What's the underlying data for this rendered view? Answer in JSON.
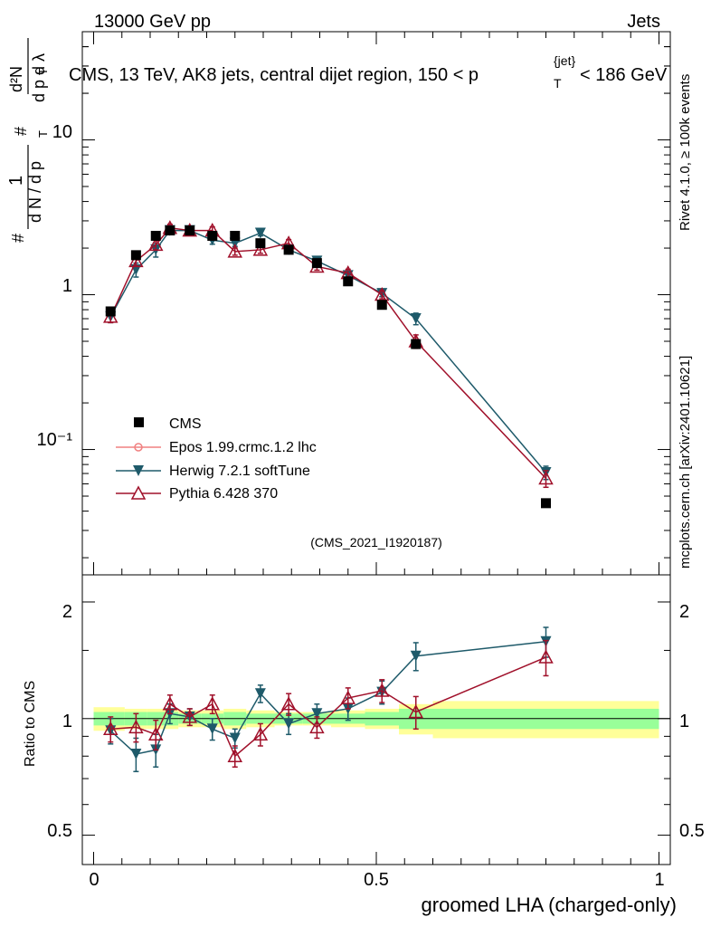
{
  "header": {
    "energy": "13000 GeV pp",
    "category": "Jets",
    "plot_title": "CMS, 13 TeV, AK8 jets, central dijet region, 150 < p",
    "plot_title_sup": "{jet}",
    "plot_title_sub": "T",
    "plot_title_end": "< 186 GeV",
    "analysis_id": "(CMS_2021_I1920187)"
  },
  "side": {
    "rivet": "Rivet 4.1.0, ≥ 100k events",
    "mcplots": "mcplots.cern.ch [arXiv:2401.10621]"
  },
  "axes": {
    "ylabel_main": "1/N dN/dp_T dλ",
    "ylabel_ratio": "Ratio to CMS",
    "xlabel": "groomed LHA (charged-only)",
    "x_ticks": [
      "0",
      "0.5",
      "1"
    ],
    "y_ticks_main": [
      "10⁻¹",
      "1",
      "10"
    ],
    "y_ticks_ratio": [
      "0.5",
      "1",
      "2"
    ]
  },
  "legend": [
    {
      "label": "CMS",
      "color": "#000000",
      "marker": "square"
    },
    {
      "label": "Epos 1.99.crmc.1.2 lhc",
      "color": "#f08080",
      "marker": "open-circle"
    },
    {
      "label": "Herwig 7.2.1 softTune",
      "color": "#1e5a6a",
      "marker": "down-triangle"
    },
    {
      "label": "Pythia 6.428 370",
      "color": "#a0102a",
      "marker": "open-triangle"
    }
  ],
  "chart_data": {
    "type": "line",
    "title": "CMS, 13 TeV, AK8 jets, central dijet region, 150 < p_T^{jet} < 186 GeV",
    "xlabel": "groomed LHA (charged-only)",
    "ylabel": "1/N dN/dp_T dλ",
    "xlim": [
      -0.02,
      1.02
    ],
    "ylim": [
      0.0155,
      50
    ],
    "yscale": "log",
    "ratio_ylim": [
      0.42,
      2.35
    ],
    "ratio_yscale": "log",
    "x": [
      0.03,
      0.075,
      0.11,
      0.135,
      0.17,
      0.21,
      0.25,
      0.295,
      0.345,
      0.395,
      0.45,
      0.51,
      0.57,
      0.8
    ],
    "cms": [
      0.78,
      1.8,
      2.4,
      2.6,
      2.6,
      2.4,
      2.4,
      2.15,
      1.95,
      1.6,
      1.22,
      0.86,
      0.48,
      0.045
    ],
    "herwig": [
      0.72,
      1.45,
      1.95,
      2.6,
      2.6,
      2.25,
      2.15,
      2.5,
      1.95,
      1.65,
      1.33,
      1.02,
      0.7,
      0.071
    ],
    "herwig_err": [
      0.06,
      0.15,
      0.2,
      0.15,
      0.12,
      0.13,
      0.1,
      0.1,
      0.1,
      0.08,
      0.07,
      0.05,
      0.06,
      0.007
    ],
    "pythia": [
      0.72,
      1.65,
      2.1,
      2.7,
      2.6,
      2.6,
      1.9,
      1.95,
      2.15,
      1.52,
      1.38,
      1.0,
      0.5,
      0.065
    ],
    "pythia_err": [
      0.06,
      0.12,
      0.15,
      0.15,
      0.12,
      0.14,
      0.1,
      0.1,
      0.12,
      0.08,
      0.08,
      0.06,
      0.05,
      0.008
    ],
    "ratio_herwig": [
      0.93,
      0.81,
      0.83,
      1.03,
      1.01,
      0.94,
      0.89,
      1.16,
      0.97,
      1.03,
      1.06,
      1.17,
      1.45,
      1.58
    ],
    "ratio_herwig_err": [
      0.07,
      0.08,
      0.08,
      0.06,
      0.05,
      0.06,
      0.05,
      0.06,
      0.06,
      0.06,
      0.07,
      0.08,
      0.12,
      0.14
    ],
    "ratio_pythia": [
      0.94,
      0.95,
      0.91,
      1.09,
      1.01,
      1.09,
      0.8,
      0.91,
      1.09,
      0.95,
      1.13,
      1.18,
      1.04,
      1.44
    ],
    "ratio_pythia_err": [
      0.07,
      0.08,
      0.08,
      0.06,
      0.05,
      0.06,
      0.05,
      0.06,
      0.07,
      0.06,
      0.07,
      0.08,
      0.1,
      0.15
    ],
    "band_edges": [
      0.0,
      0.055,
      0.095,
      0.12,
      0.15,
      0.19,
      0.23,
      0.27,
      0.32,
      0.37,
      0.42,
      0.48,
      0.54,
      0.6,
      1.0
    ],
    "band_outer": [
      0.07,
      0.06,
      0.06,
      0.06,
      0.05,
      0.05,
      0.06,
      0.05,
      0.04,
      0.04,
      0.05,
      0.06,
      0.09,
      0.11
    ],
    "band_inner": [
      0.04,
      0.04,
      0.04,
      0.04,
      0.03,
      0.03,
      0.04,
      0.03,
      0.03,
      0.03,
      0.03,
      0.04,
      0.06,
      0.06
    ]
  }
}
